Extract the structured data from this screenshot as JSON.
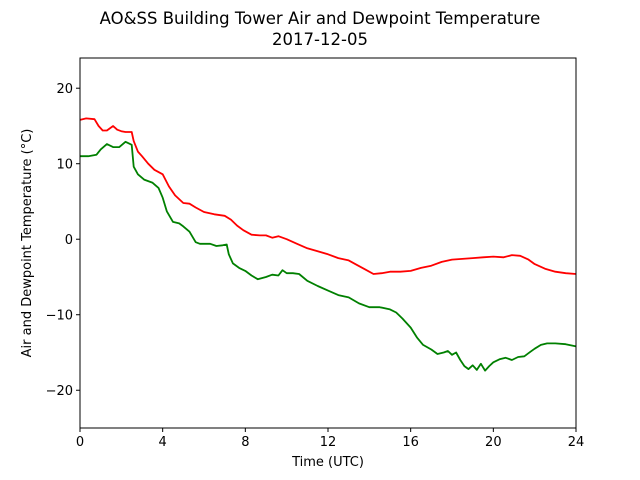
{
  "chart_data": {
    "type": "line",
    "title": "AO&SS Building Tower Air and Dewpoint Temperature",
    "subtitle": "2017-12-05",
    "xlabel": "Time (UTC)",
    "ylabel": "Air and Dewpoint Temperature (°C)",
    "xlim": [
      0,
      24
    ],
    "ylim": [
      -25,
      24
    ],
    "xticks": [
      0,
      4,
      8,
      12,
      16,
      20,
      24
    ],
    "yticks": [
      -20,
      -10,
      0,
      10,
      20
    ],
    "grid": false,
    "series": [
      {
        "color": "#ff0000",
        "x": [
          0,
          0.3,
          0.7,
          0.9,
          1.1,
          1.3,
          1.6,
          1.8,
          2.0,
          2.2,
          2.5,
          2.6,
          2.8,
          3.0,
          3.3,
          3.6,
          4.0,
          4.3,
          4.6,
          5.0,
          5.3,
          5.6,
          6.0,
          6.5,
          7.0,
          7.3,
          7.6,
          7.9,
          8.3,
          8.7,
          9.0,
          9.3,
          9.6,
          10.0,
          10.5,
          11.0,
          11.5,
          12.0,
          12.5,
          13.0,
          13.4,
          13.8,
          14.2,
          14.6,
          15.0,
          15.5,
          16.0,
          16.5,
          17.0,
          17.5,
          18.0,
          18.5,
          19.0,
          19.5,
          20.0,
          20.5,
          20.9,
          21.3,
          21.7,
          22.0,
          22.5,
          23.0,
          23.5,
          24.0
        ],
        "y": [
          15.8,
          16.0,
          15.9,
          15.0,
          14.4,
          14.4,
          15.0,
          14.5,
          14.3,
          14.2,
          14.2,
          13.0,
          11.6,
          11.0,
          10.0,
          9.2,
          8.6,
          7.0,
          5.8,
          4.8,
          4.7,
          4.2,
          3.6,
          3.3,
          3.1,
          2.6,
          1.8,
          1.2,
          0.6,
          0.5,
          0.5,
          0.2,
          0.4,
          0.0,
          -0.6,
          -1.2,
          -1.6,
          -2.0,
          -2.5,
          -2.8,
          -3.4,
          -4.0,
          -4.6,
          -4.5,
          -4.3,
          -4.3,
          -4.2,
          -3.8,
          -3.5,
          -3.0,
          -2.7,
          -2.6,
          -2.5,
          -2.4,
          -2.3,
          -2.4,
          -2.1,
          -2.2,
          -2.7,
          -3.3,
          -3.9,
          -4.3,
          -4.5,
          -4.6
        ]
      },
      {
        "color": "#008000",
        "x": [
          0,
          0.4,
          0.8,
          1.0,
          1.3,
          1.6,
          1.9,
          2.2,
          2.5,
          2.6,
          2.8,
          3.1,
          3.5,
          3.8,
          4.0,
          4.2,
          4.5,
          4.8,
          5.0,
          5.3,
          5.6,
          5.8,
          6.0,
          6.3,
          6.6,
          6.9,
          7.1,
          7.2,
          7.4,
          7.7,
          8.0,
          8.3,
          8.6,
          9.0,
          9.3,
          9.6,
          9.8,
          10.0,
          10.3,
          10.6,
          11.0,
          11.5,
          12.0,
          12.5,
          13.0,
          13.5,
          14.0,
          14.5,
          15.0,
          15.3,
          15.6,
          16.0,
          16.3,
          16.6,
          17.0,
          17.3,
          17.6,
          17.8,
          18.0,
          18.2,
          18.4,
          18.6,
          18.8,
          19.0,
          19.2,
          19.4,
          19.6,
          19.8,
          20.0,
          20.3,
          20.6,
          20.9,
          21.2,
          21.5,
          21.8,
          22.0,
          22.3,
          22.6,
          23.0,
          23.5,
          24.0
        ],
        "y": [
          11.0,
          11.0,
          11.2,
          11.9,
          12.6,
          12.2,
          12.2,
          12.9,
          12.5,
          9.6,
          8.6,
          7.9,
          7.5,
          6.8,
          5.5,
          3.7,
          2.3,
          2.1,
          1.7,
          1.0,
          -0.4,
          -0.6,
          -0.6,
          -0.6,
          -0.9,
          -0.8,
          -0.7,
          -2.0,
          -3.2,
          -3.8,
          -4.2,
          -4.8,
          -5.3,
          -5.0,
          -4.7,
          -4.8,
          -4.1,
          -4.5,
          -4.5,
          -4.6,
          -5.5,
          -6.2,
          -6.8,
          -7.4,
          -7.7,
          -8.5,
          -9.0,
          -9.0,
          -9.3,
          -9.7,
          -10.5,
          -11.7,
          -13.0,
          -14.0,
          -14.6,
          -15.2,
          -15.0,
          -14.8,
          -15.3,
          -15.0,
          -16.0,
          -16.8,
          -17.2,
          -16.7,
          -17.3,
          -16.5,
          -17.4,
          -16.8,
          -16.3,
          -15.9,
          -15.7,
          -16.0,
          -15.6,
          -15.5,
          -14.9,
          -14.5,
          -14.0,
          -13.8,
          -13.8,
          -13.9,
          -14.2
        ]
      }
    ]
  }
}
